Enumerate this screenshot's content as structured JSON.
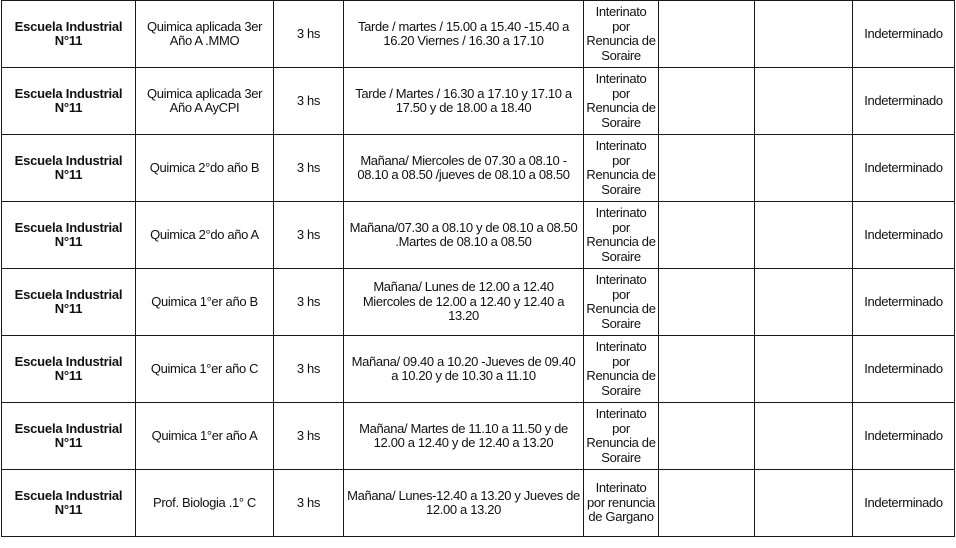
{
  "rows": [
    {
      "school": "Escuela Industrial\nN°11",
      "subject": "Quimica aplicada 3er\nAño A .MMO",
      "hours": "3 hs",
      "schedule": "Tarde / martes / 15.00 a 15.40 -15.40 a\n16.20 Viernes / 16.30 a 17.10",
      "type": "Interinato\npor\nRenuncia de\nSoraire",
      "c6": "",
      "c7": "",
      "duration": "Indeterminado"
    },
    {
      "school": "Escuela Industrial\nN°11",
      "subject": "Quimica aplicada 3er\nAño A AyCPI",
      "hours": "3 hs",
      "schedule": "Tarde / Martes / 16.30 a 17.10 y 17.10 a\n17.50 y de 18.00 a 18.40",
      "type": "Interinato\npor\nRenuncia de\nSoraire",
      "c6": "",
      "c7": "",
      "duration": "Indeterminado"
    },
    {
      "school": "Escuela Industrial\nN°11",
      "subject": "Quimica 2°do año B",
      "hours": "3 hs",
      "schedule": "Mañana/ Miercoles de 07.30 a 08.10 -\n08.10 a 08.50 /jueves de 08.10 a 08.50",
      "type": "Interinato\npor\nRenuncia de\nSoraire",
      "c6": "",
      "c7": "",
      "duration": "Indeterminado"
    },
    {
      "school": "Escuela Industrial\nN°11",
      "subject": "Quimica 2°do año A",
      "hours": "3 hs",
      "schedule": "Mañana/07.30 a 08.10 y de 08.10 a 08.50\n.Martes de 08.10 a 08.50",
      "type": "Interinato\npor\nRenuncia de\nSoraire",
      "c6": "",
      "c7": "",
      "duration": "Indeterminado"
    },
    {
      "school": "Escuela Industrial\nN°11",
      "subject": "Quimica 1°er año B",
      "hours": "3 hs",
      "schedule": "Mañana/ Lunes de 12.00 a 12.40\nMiercoles de 12.00 a 12.40 y 12.40 a\n13.20",
      "type": "Interinato\npor\nRenuncia de\nSoraire",
      "c6": "",
      "c7": "",
      "duration": "Indeterminado"
    },
    {
      "school": "Escuela Industrial\nN°11",
      "subject": "Quimica 1°er año C",
      "hours": "3 hs",
      "schedule": "Mañana/ 09.40 a 10.20 -Jueves de 09.40\na 10.20 y de 10.30 a 11.10",
      "type": "Interinato\npor\nRenuncia de\nSoraire",
      "c6": "",
      "c7": "",
      "duration": "Indeterminado"
    },
    {
      "school": "Escuela Industrial\nN°11",
      "subject": "Quimica 1°er año A",
      "hours": "3 hs",
      "schedule": "Mañana/ Martes de 11.10 a 11.50 y de\n12.00 a 12.40 y de 12.40 a 13.20",
      "type": "Interinato\npor\nRenuncia de\nSoraire",
      "c6": "",
      "c7": "",
      "duration": "Indeterminado"
    },
    {
      "school": "Escuela Industrial\nN°11",
      "subject": "Prof. Biologia .1° C",
      "hours": "3 hs",
      "schedule": "Mañana/ Lunes-12.40 a 13.20 y Jueves de\n12.00 a 13.20",
      "type": "Interinato\npor renuncia\nde Gargano",
      "c6": "",
      "c7": "",
      "duration": "Indeterminado"
    }
  ]
}
